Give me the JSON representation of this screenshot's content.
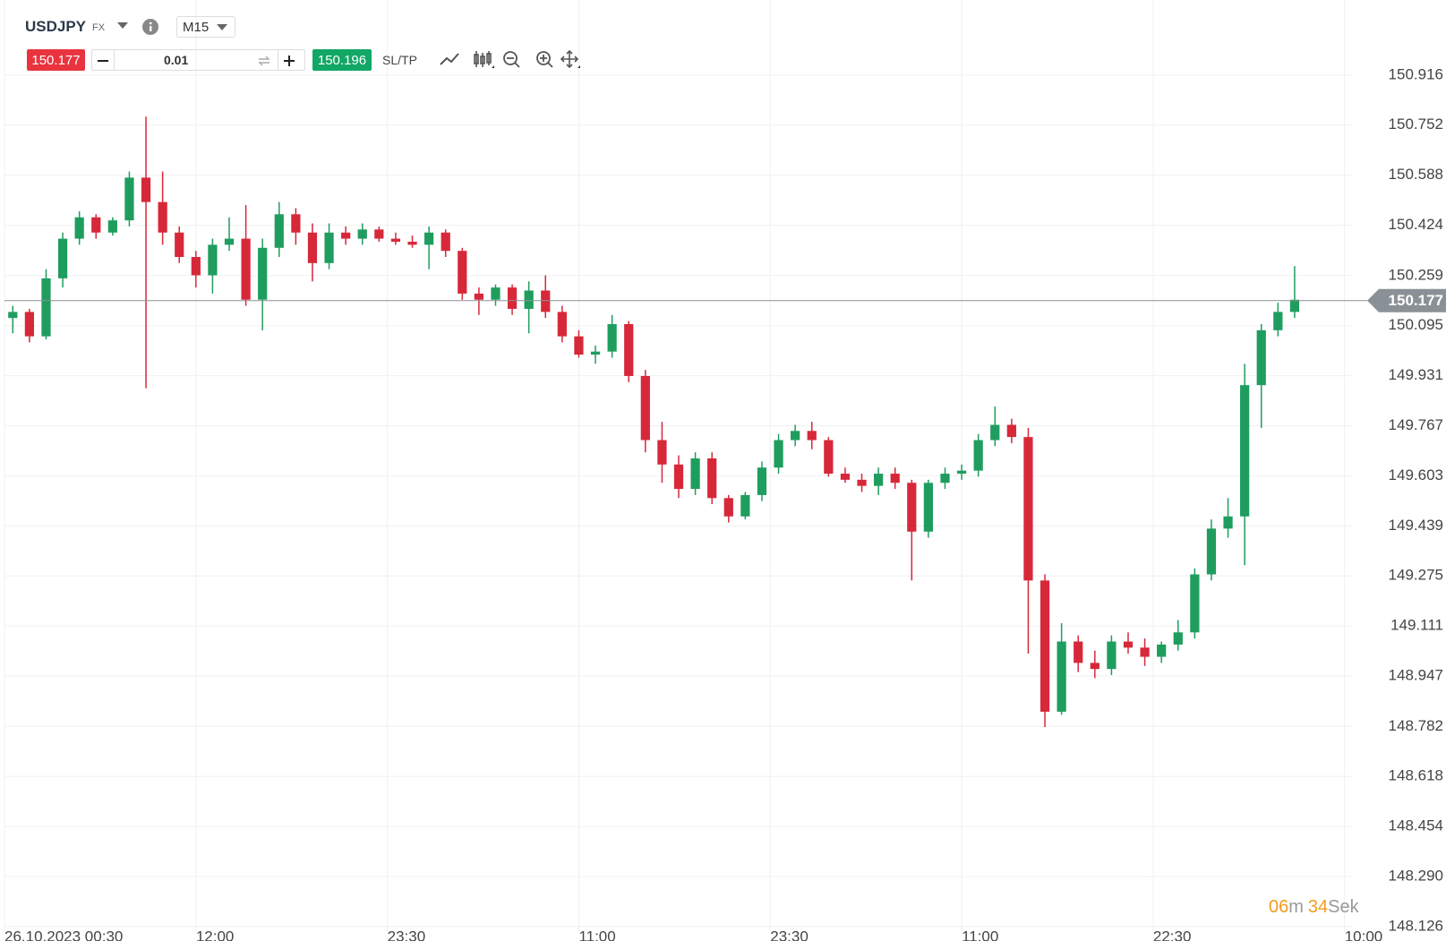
{
  "toolbar": {
    "symbol": "USDJPY",
    "market": "FX",
    "timeframe": "M15",
    "sell_price": "150.177",
    "volume": "0.01",
    "buy_price": "150.196",
    "sltp": "SL/TP"
  },
  "timer": {
    "minutes": "06",
    "minutes_unit": "m",
    "seconds": "34",
    "seconds_unit": "Sek"
  },
  "chart_data": {
    "type": "candlestick",
    "up_color": "#1f9d5f",
    "down_color": "#d7283a",
    "open": [
      150.12,
      150.14,
      150.06,
      150.25,
      150.38,
      150.45,
      150.4,
      150.44,
      150.58,
      150.5,
      150.4,
      150.32,
      150.26,
      150.36,
      150.38,
      150.18,
      150.35,
      150.46,
      150.4,
      150.3,
      150.4,
      150.38,
      150.41,
      150.38,
      150.37,
      150.36,
      150.4,
      150.34,
      150.2,
      150.18,
      150.22,
      150.15,
      150.21,
      150.14,
      150.06,
      150.0,
      150.01,
      150.1,
      149.93,
      149.72,
      149.64,
      149.56,
      149.66,
      149.53,
      149.47,
      149.54,
      149.63,
      149.72,
      149.75,
      149.72,
      149.61,
      149.59,
      149.57,
      149.61,
      149.58,
      149.42,
      149.58,
      149.61,
      149.62,
      149.72,
      149.77,
      149.73,
      149.26,
      148.83,
      149.06,
      148.99,
      148.97,
      149.06,
      149.04,
      149.01,
      149.05,
      149.09,
      149.28,
      149.43,
      149.47,
      149.9,
      150.08,
      150.14
    ],
    "high": [
      150.16,
      150.15,
      150.28,
      150.4,
      150.47,
      150.46,
      150.45,
      150.6,
      150.78,
      150.6,
      150.42,
      150.34,
      150.38,
      150.45,
      150.49,
      150.38,
      150.5,
      150.48,
      150.43,
      150.43,
      150.42,
      150.43,
      150.42,
      150.4,
      150.39,
      150.42,
      150.41,
      150.35,
      150.22,
      150.23,
      150.23,
      150.24,
      150.26,
      150.16,
      150.08,
      150.03,
      150.13,
      150.11,
      149.95,
      149.78,
      149.67,
      149.68,
      149.68,
      149.54,
      149.55,
      149.65,
      149.74,
      149.77,
      149.78,
      149.73,
      149.63,
      149.61,
      149.63,
      149.63,
      149.59,
      149.59,
      149.63,
      149.64,
      149.74,
      149.83,
      149.79,
      149.76,
      149.28,
      149.12,
      149.08,
      149.03,
      149.08,
      149.09,
      149.07,
      149.06,
      149.13,
      149.3,
      149.46,
      149.53,
      149.97,
      150.1,
      150.17,
      150.29
    ],
    "low": [
      150.07,
      150.04,
      150.05,
      150.22,
      150.36,
      150.38,
      150.39,
      150.42,
      149.89,
      150.36,
      150.3,
      150.22,
      150.2,
      150.34,
      150.16,
      150.08,
      150.32,
      150.36,
      150.24,
      150.28,
      150.36,
      150.36,
      150.37,
      150.36,
      150.35,
      150.28,
      150.32,
      150.18,
      150.13,
      150.16,
      150.13,
      150.07,
      150.12,
      150.04,
      149.99,
      149.97,
      149.99,
      149.91,
      149.68,
      149.58,
      149.53,
      149.54,
      149.51,
      149.45,
      149.46,
      149.52,
      149.61,
      149.7,
      149.69,
      149.6,
      149.58,
      149.55,
      149.54,
      149.56,
      149.26,
      149.4,
      149.56,
      149.59,
      149.6,
      149.7,
      149.71,
      149.02,
      148.78,
      148.82,
      148.96,
      148.94,
      148.95,
      149.02,
      148.98,
      148.99,
      149.03,
      149.07,
      149.26,
      149.4,
      149.31,
      149.76,
      150.06,
      150.12
    ],
    "close": [
      150.14,
      150.06,
      150.25,
      150.38,
      150.45,
      150.4,
      150.44,
      150.58,
      150.5,
      150.4,
      150.32,
      150.26,
      150.36,
      150.38,
      150.18,
      150.35,
      150.46,
      150.4,
      150.3,
      150.4,
      150.38,
      150.41,
      150.38,
      150.37,
      150.36,
      150.4,
      150.34,
      150.2,
      150.18,
      150.22,
      150.15,
      150.21,
      150.14,
      150.06,
      150.0,
      150.01,
      150.1,
      149.93,
      149.72,
      149.64,
      149.56,
      149.66,
      149.53,
      149.47,
      149.54,
      149.63,
      149.72,
      149.75,
      149.72,
      149.61,
      149.59,
      149.57,
      149.61,
      149.58,
      149.42,
      149.58,
      149.61,
      149.62,
      149.72,
      149.77,
      149.73,
      149.26,
      148.83,
      149.06,
      148.99,
      148.97,
      149.06,
      149.04,
      149.01,
      149.05,
      149.09,
      149.28,
      149.43,
      149.47,
      149.9,
      150.08,
      150.14,
      150.18
    ],
    "last_price": 150.177,
    "ylim": [
      148.111,
      151.162
    ],
    "yticks": [
      150.916,
      150.752,
      150.588,
      150.424,
      150.259,
      150.095,
      149.931,
      149.767,
      149.603,
      149.439,
      149.275,
      149.111,
      148.947,
      148.782,
      148.618,
      148.454,
      {
        "value": 148.29,
        "label": "148.290"
      },
      148.126
    ],
    "xlim": [
      0,
      81
    ],
    "xticks": [
      {
        "value": 0,
        "label": "26.10.2023 00:30"
      },
      {
        "value": 11.5,
        "label": "12:00"
      },
      {
        "value": 23,
        "label": "23:30"
      },
      {
        "value": 34.5,
        "label": "11:00"
      },
      {
        "value": 46,
        "label": "23:30"
      },
      {
        "value": 57.5,
        "label": "11:00"
      },
      {
        "value": 69,
        "label": "22:30"
      },
      {
        "value": 80.5,
        "label": "10:00"
      }
    ],
    "grid": true
  }
}
